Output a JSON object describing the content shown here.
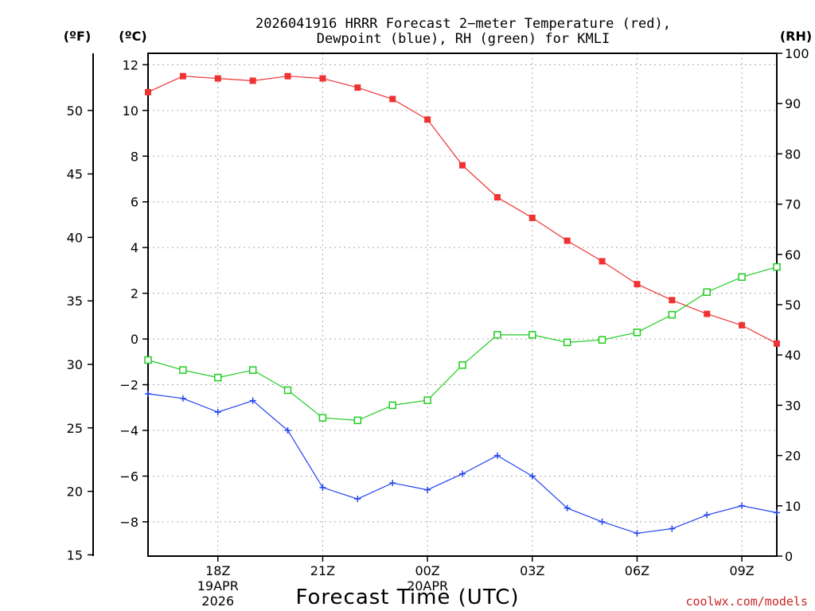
{
  "chart_data": {
    "type": "line",
    "title": "2026041916 HRRR Forecast 2−meter Temperature (red),",
    "subtitle": "Dewpoint (blue), RH (green) for KMLI",
    "xlabel": "Forecast Time (UTC)",
    "unit_labels": {
      "fahrenheit": "(ºF)",
      "celsius": "(ºC)",
      "rh": "(RH)"
    },
    "xlim": [
      16,
      34
    ],
    "ylim_celsius": [
      -9.5,
      12.5
    ],
    "ylim_rh": [
      0,
      100
    ],
    "x_ticks": [
      {
        "x": 18,
        "lines": [
          "18Z",
          "19APR",
          "2026"
        ]
      },
      {
        "x": 21,
        "lines": [
          "21Z"
        ]
      },
      {
        "x": 24,
        "lines": [
          "00Z",
          "20APR"
        ]
      },
      {
        "x": 27,
        "lines": [
          "03Z"
        ]
      },
      {
        "x": 30,
        "lines": [
          "06Z"
        ]
      },
      {
        "x": 33,
        "lines": [
          "09Z"
        ]
      }
    ],
    "celsius_ticks": [
      12,
      10,
      8,
      6,
      4,
      2,
      0,
      -2,
      -4,
      -6,
      -8
    ],
    "fahrenheit_ticks": [
      50,
      45,
      40,
      35,
      30,
      25,
      20,
      15
    ],
    "rh_ticks": [
      100,
      90,
      80,
      70,
      60,
      50,
      40,
      30,
      20,
      10,
      0
    ],
    "series": [
      {
        "name": "2-meter Temperature",
        "color": "#ee3333",
        "axis": "celsius",
        "marker": "filled-square",
        "x": [
          16,
          17,
          18,
          19,
          20,
          21,
          22,
          23,
          24,
          25,
          26,
          27,
          28,
          29,
          30,
          31,
          32,
          33,
          34
        ],
        "values": [
          10.8,
          11.5,
          11.4,
          11.3,
          11.5,
          11.4,
          11.0,
          10.5,
          9.6,
          7.6,
          6.2,
          5.3,
          4.3,
          3.4,
          2.4,
          1.7,
          1.1,
          0.6,
          -0.2
        ]
      },
      {
        "name": "Dewpoint",
        "color": "#2244ee",
        "axis": "celsius",
        "marker": "plus",
        "x": [
          16,
          17,
          18,
          19,
          20,
          21,
          22,
          23,
          24,
          25,
          26,
          27,
          28,
          29,
          30,
          31,
          32,
          33,
          34
        ],
        "values": [
          -2.4,
          -2.6,
          -3.2,
          -2.7,
          -4.0,
          -6.5,
          -7.0,
          -6.3,
          -6.6,
          -5.9,
          -5.1,
          -6.0,
          -7.4,
          -8.0,
          -8.5,
          -8.3,
          -7.7,
          -7.3,
          -7.6
        ]
      },
      {
        "name": "RH",
        "color": "#22cc22",
        "axis": "rh",
        "marker": "open-square",
        "x": [
          16,
          17,
          18,
          19,
          20,
          21,
          22,
          23,
          24,
          25,
          26,
          27,
          28,
          29,
          30,
          31,
          32,
          33,
          34
        ],
        "values": [
          39,
          37,
          35.5,
          37,
          33,
          27.5,
          27,
          30,
          31,
          38,
          44,
          44,
          42.5,
          43,
          44.5,
          48,
          52.5,
          55.5,
          57.5
        ]
      }
    ]
  },
  "credit": "coolwx.com/models"
}
